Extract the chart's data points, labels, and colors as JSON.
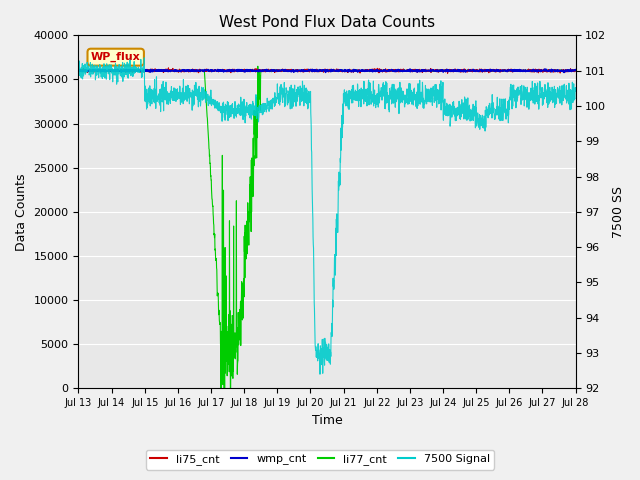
{
  "title": "West Pond Flux Data Counts",
  "xlabel": "Time",
  "ylabel_left": "Data Counts",
  "ylabel_right": "7500 SS",
  "ylim_left": [
    0,
    40000
  ],
  "ylim_right": [
    92.0,
    102.0
  ],
  "yticks_left": [
    0,
    5000,
    10000,
    15000,
    20000,
    25000,
    30000,
    35000,
    40000
  ],
  "yticks_right": [
    92.0,
    93.0,
    94.0,
    95.0,
    96.0,
    97.0,
    98.0,
    99.0,
    100.0,
    101.0,
    102.0
  ],
  "xtick_labels": [
    "Jul 13",
    "Jul 14",
    "Jul 15",
    "Jul 16",
    "Jul 17",
    "Jul 18",
    "Jul 19",
    "Jul 20",
    "Jul 21",
    "Jul 22",
    "Jul 23",
    "Jul 24",
    "Jul 25",
    "Jul 26",
    "Jul 27",
    "Jul 28"
  ],
  "bg_color": "#e8e8e8",
  "fig_bg_color": "#f0f0f0",
  "title_fontsize": 11,
  "tick_fontsize": 8,
  "label_fontsize": 9,
  "legend_items": [
    "li75_cnt",
    "wmp_cnt",
    "li77_cnt",
    "7500 Signal"
  ],
  "legend_colors": [
    "#cc0000",
    "#0000cc",
    "#00cc00",
    "#00cccc"
  ],
  "wp_flux_label": "WP_flux",
  "wp_flux_bg": "#ffffcc",
  "wp_flux_border": "#cc8800",
  "wp_flux_text_color": "#cc0000",
  "n_days": 15,
  "pts_per_day": 144,
  "base_cnt": 36000,
  "base_sig": 101.0,
  "sig_mid": 100.3
}
